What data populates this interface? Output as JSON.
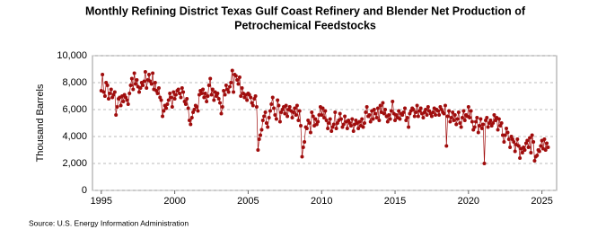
{
  "chart_data": {
    "type": "line",
    "title": [
      "Monthly Refining District Texas Gulf Coast Refinery and Blender Net Production of",
      "Petrochemical Feedstocks"
    ],
    "y_label": "Thousand Barrels",
    "source": "Source: U.S. Energy Information Administration",
    "xlim": [
      1994.4,
      2026
    ],
    "xticks": [
      1995,
      2000,
      2005,
      2010,
      2015,
      2020,
      2025
    ],
    "ylim": [
      0,
      10000
    ],
    "yticks": [
      0,
      {
        "value": 2000,
        "label": "2,000"
      },
      {
        "value": 4000,
        "label": "4,000"
      },
      {
        "value": 6000,
        "label": "6,000"
      },
      {
        "value": 8000,
        "label": "8,000"
      },
      {
        "value": 10000,
        "label": "10,000"
      }
    ],
    "grid": true,
    "markers": true,
    "x": [
      1995,
      1995.08,
      1995.17,
      1995.25,
      1995.33,
      1995.42,
      1995.5,
      1995.58,
      1995.67,
      1995.75,
      1995.83,
      1995.92,
      1996,
      1996.08,
      1996.17,
      1996.25,
      1996.33,
      1996.42,
      1996.5,
      1996.58,
      1996.67,
      1996.75,
      1996.83,
      1996.92,
      1997,
      1997.08,
      1997.17,
      1997.25,
      1997.33,
      1997.42,
      1997.5,
      1997.58,
      1997.67,
      1997.75,
      1997.83,
      1997.92,
      1998,
      1998.08,
      1998.17,
      1998.25,
      1998.33,
      1998.42,
      1998.5,
      1998.58,
      1998.67,
      1998.75,
      1998.83,
      1998.92,
      1999,
      1999.08,
      1999.17,
      1999.25,
      1999.33,
      1999.42,
      1999.5,
      1999.58,
      1999.67,
      1999.75,
      1999.83,
      1999.92,
      2000,
      2000.08,
      2000.17,
      2000.25,
      2000.33,
      2000.42,
      2000.5,
      2000.58,
      2000.67,
      2000.75,
      2000.83,
      2000.92,
      2001,
      2001.08,
      2001.17,
      2001.25,
      2001.33,
      2001.42,
      2001.5,
      2001.58,
      2001.67,
      2001.75,
      2001.83,
      2001.92,
      2002,
      2002.08,
      2002.17,
      2002.25,
      2002.33,
      2002.42,
      2002.5,
      2002.58,
      2002.67,
      2002.75,
      2002.83,
      2002.92,
      2003,
      2003.08,
      2003.17,
      2003.25,
      2003.33,
      2003.42,
      2003.5,
      2003.58,
      2003.67,
      2003.75,
      2003.83,
      2003.92,
      2004,
      2004.08,
      2004.17,
      2004.25,
      2004.33,
      2004.42,
      2004.5,
      2004.58,
      2004.67,
      2004.75,
      2004.83,
      2004.92,
      2005,
      2005.08,
      2005.17,
      2005.25,
      2005.33,
      2005.42,
      2005.5,
      2005.58,
      2005.67,
      2005.75,
      2005.83,
      2005.92,
      2006,
      2006.08,
      2006.17,
      2006.25,
      2006.33,
      2006.42,
      2006.5,
      2006.58,
      2006.67,
      2006.75,
      2006.83,
      2006.92,
      2007,
      2007.08,
      2007.17,
      2007.25,
      2007.33,
      2007.42,
      2007.5,
      2007.58,
      2007.67,
      2007.75,
      2007.83,
      2007.92,
      2008,
      2008.08,
      2008.17,
      2008.25,
      2008.33,
      2008.42,
      2008.5,
      2008.58,
      2008.67,
      2008.75,
      2008.83,
      2008.92,
      2009,
      2009.08,
      2009.17,
      2009.25,
      2009.33,
      2009.42,
      2009.5,
      2009.58,
      2009.67,
      2009.75,
      2009.83,
      2009.92,
      2010,
      2010.08,
      2010.17,
      2010.25,
      2010.33,
      2010.42,
      2010.5,
      2010.58,
      2010.67,
      2010.75,
      2010.83,
      2010.92,
      2011,
      2011.08,
      2011.17,
      2011.25,
      2011.33,
      2011.42,
      2011.5,
      2011.58,
      2011.67,
      2011.75,
      2011.83,
      2011.92,
      2012,
      2012.08,
      2012.17,
      2012.25,
      2012.33,
      2012.42,
      2012.5,
      2012.58,
      2012.67,
      2012.75,
      2012.83,
      2012.92,
      2013,
      2013.08,
      2013.17,
      2013.25,
      2013.33,
      2013.42,
      2013.5,
      2013.58,
      2013.67,
      2013.75,
      2013.83,
      2013.92,
      2014,
      2014.08,
      2014.17,
      2014.25,
      2014.33,
      2014.42,
      2014.5,
      2014.58,
      2014.67,
      2014.75,
      2014.83,
      2014.92,
      2015,
      2015.08,
      2015.17,
      2015.25,
      2015.33,
      2015.42,
      2015.5,
      2015.58,
      2015.67,
      2015.75,
      2015.83,
      2015.92,
      2016,
      2016.08,
      2016.17,
      2016.25,
      2016.33,
      2016.42,
      2016.5,
      2016.58,
      2016.67,
      2016.75,
      2016.83,
      2016.92,
      2017,
      2017.08,
      2017.17,
      2017.25,
      2017.33,
      2017.42,
      2017.5,
      2017.58,
      2017.67,
      2017.75,
      2017.83,
      2017.92,
      2018,
      2018.08,
      2018.17,
      2018.25,
      2018.33,
      2018.42,
      2018.5,
      2018.58,
      2018.67,
      2018.75,
      2018.83,
      2018.92,
      2019,
      2019.08,
      2019.17,
      2019.25,
      2019.33,
      2019.42,
      2019.5,
      2019.58,
      2019.67,
      2019.75,
      2019.83,
      2019.92,
      2020,
      2020.08,
      2020.17,
      2020.25,
      2020.33,
      2020.42,
      2020.5,
      2020.58,
      2020.67,
      2020.75,
      2020.83,
      2020.92,
      2021,
      2021.08,
      2021.17,
      2021.25,
      2021.33,
      2021.42,
      2021.5,
      2021.58,
      2021.67,
      2021.75,
      2021.83,
      2021.92,
      2022,
      2022.08,
      2022.17,
      2022.25,
      2022.33,
      2022.42,
      2022.5,
      2022.58,
      2022.67,
      2022.75,
      2022.83,
      2022.92,
      2023,
      2023.08,
      2023.17,
      2023.25,
      2023.33,
      2023.42,
      2023.5,
      2023.58,
      2023.67,
      2023.75,
      2023.83,
      2023.92,
      2024,
      2024.08,
      2024.17,
      2024.25,
      2024.33,
      2024.42,
      2024.5,
      2024.58,
      2024.67,
      2024.75,
      2024.83,
      2024.92,
      2025,
      2025.08,
      2025.17,
      2025.25,
      2025.33,
      2025.42
    ],
    "series": [
      {
        "color": "#a00d0d",
        "values": [
          7400,
          8600,
          7300,
          7000,
          8000,
          7800,
          6800,
          7200,
          7500,
          6900,
          7100,
          7300,
          5600,
          6200,
          6800,
          6900,
          6300,
          7000,
          6600,
          7100,
          6900,
          6700,
          6400,
          7200,
          7800,
          8300,
          7500,
          8700,
          7900,
          8200,
          7700,
          7300,
          7600,
          8000,
          7800,
          8100,
          8800,
          7600,
          8200,
          8600,
          8100,
          7900,
          8700,
          7500,
          8000,
          7400,
          7200,
          7600,
          6900,
          6700,
          5500,
          5900,
          6300,
          6100,
          6400,
          6700,
          7200,
          6900,
          6200,
          7300,
          6800,
          7100,
          7400,
          7500,
          7200,
          6900,
          7600,
          7300,
          6600,
          6400,
          6800,
          6100,
          5200,
          4900,
          5400,
          5800,
          6000,
          6300,
          6200,
          5900,
          7100,
          7400,
          7200,
          7500,
          6900,
          7200,
          6600,
          7000,
          7800,
          8300,
          7100,
          7500,
          6700,
          7300,
          7000,
          7200,
          6800,
          6500,
          5700,
          6200,
          7400,
          7100,
          7800,
          7500,
          7300,
          7700,
          8000,
          8900,
          7300,
          8600,
          8500,
          8200,
          7900,
          8400,
          7000,
          7600,
          7200,
          6900,
          7100,
          6700,
          7200,
          7100,
          6900,
          6500,
          6300,
          6800,
          7000,
          6200,
          3000,
          3800,
          4100,
          4500,
          5200,
          5500,
          5800,
          5000,
          4700,
          5400,
          5900,
          6400,
          6900,
          6100,
          5600,
          5300,
          6700,
          6300,
          5100,
          5800,
          6000,
          6200,
          5700,
          6300,
          5500,
          6000,
          6200,
          5900,
          5400,
          5800,
          6100,
          5600,
          6300,
          5200,
          5900,
          4800,
          2500,
          3200,
          3600,
          4700,
          4600,
          5200,
          5000,
          4300,
          5800,
          5500,
          4800,
          5300,
          4900,
          5100,
          5600,
          6200,
          5600,
          6100,
          5400,
          5900,
          5200,
          4600,
          5000,
          5300,
          4400,
          4700,
          4900,
          5800,
          4600,
          5000,
          5200,
          5700,
          5300,
          4700,
          4900,
          5500,
          5100,
          4600,
          5200,
          5000,
          4800,
          5300,
          4400,
          4900,
          5200,
          5000,
          4600,
          5100,
          4800,
          5300,
          4700,
          5000,
          5800,
          6200,
          5500,
          5600,
          5100,
          5900,
          5300,
          6000,
          5700,
          5400,
          6100,
          5200,
          6300,
          5800,
          6500,
          5700,
          6000,
          5500,
          5100,
          5600,
          5300,
          5900,
          6600,
          5700,
          5200,
          5600,
          5400,
          5900,
          5300,
          5700,
          5600,
          5800,
          6100,
          5200,
          5400,
          4700,
          5700,
          5900,
          6100,
          6000,
          5500,
          5800,
          6300,
          5500,
          5900,
          6100,
          5700,
          5400,
          5800,
          6000,
          5600,
          6200,
          5900,
          5700,
          5500,
          5800,
          6100,
          5600,
          6000,
          5900,
          5600,
          6200,
          6000,
          5800,
          5700,
          6300,
          3300,
          5500,
          5900,
          5100,
          5400,
          5800,
          5200,
          5600,
          4900,
          5300,
          5800,
          5000,
          4700,
          5400,
          5900,
          5200,
          5600,
          5500,
          6200,
          5400,
          5900,
          5100,
          4500,
          4700,
          5100,
          5400,
          4300,
          4800,
          5300,
          4600,
          4900,
          2000,
          5200,
          5400,
          4700,
          5000,
          5200,
          4800,
          5000,
          5600,
          5200,
          5400,
          4500,
          5300,
          4800,
          5000,
          4100,
          3600,
          4100,
          4600,
          4300,
          3800,
          3200,
          4000,
          3800,
          3600,
          2900,
          3400,
          3800,
          3300,
          2400,
          3100,
          2800,
          3200,
          3000,
          3500,
          3700,
          3200,
          3900,
          2800,
          4100,
          3600,
          2200,
          2500,
          2600,
          3000,
          2900,
          3300,
          3700,
          3100,
          3800,
          3000,
          3500,
          3200
        ]
      }
    ]
  }
}
